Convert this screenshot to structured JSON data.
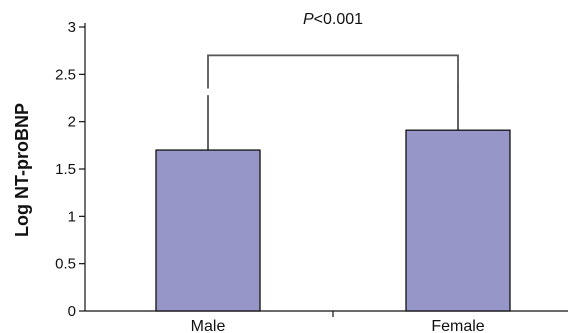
{
  "chart_data": {
    "type": "bar",
    "categories": [
      "Male",
      "Female"
    ],
    "values": [
      1.7,
      1.91
    ],
    "error_upper": [
      0.58,
      0.49
    ],
    "ylabel": "Log NT-proBNP",
    "xlabel": "",
    "ylim": [
      0,
      3
    ],
    "yticks": [
      "0",
      "0.5",
      "1",
      "1.5",
      "2",
      "2.5",
      "3"
    ],
    "bar_color": "#9696c8",
    "bar_edge_color": "#111111",
    "grid": false,
    "significance": {
      "p_symbol": "P",
      "p_rest": "<0.001",
      "between": [
        "Male",
        "Female"
      ],
      "bracket_level": 2.7,
      "bracket_drop_to": [
        2.35,
        2.35
      ],
      "bracket_color": "#555555"
    }
  }
}
